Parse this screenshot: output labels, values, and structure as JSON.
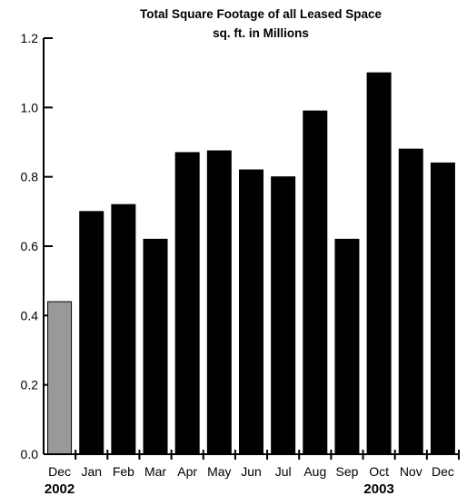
{
  "chart_data": {
    "type": "bar",
    "title": "Total Square Footage of all Leased Space",
    "subtitle": "sq. ft. in Millions",
    "xlabel": "",
    "ylabel": "",
    "ylim": [
      0,
      1.2
    ],
    "yticks": [
      "0.0",
      "0.2",
      "0.4",
      "0.6",
      "0.8",
      "1.0",
      "1.2"
    ],
    "categories": [
      "Dec",
      "Jan",
      "Feb",
      "Mar",
      "Apr",
      "May",
      "Jun",
      "Jul",
      "Aug",
      "Sep",
      "Oct",
      "Nov",
      "Dec"
    ],
    "values": [
      0.44,
      0.7,
      0.72,
      0.62,
      0.87,
      0.875,
      0.82,
      0.8,
      0.99,
      0.62,
      1.1,
      0.88,
      0.84
    ],
    "bar_colors": [
      "#999999",
      "#000000",
      "#000000",
      "#000000",
      "#000000",
      "#000000",
      "#000000",
      "#000000",
      "#000000",
      "#000000",
      "#000000",
      "#000000",
      "#000000"
    ],
    "year_labels": [
      {
        "text": "2002",
        "category_index": 0
      },
      {
        "text": "2003",
        "category_index": 10
      }
    ],
    "grid": false,
    "legend": "none"
  }
}
